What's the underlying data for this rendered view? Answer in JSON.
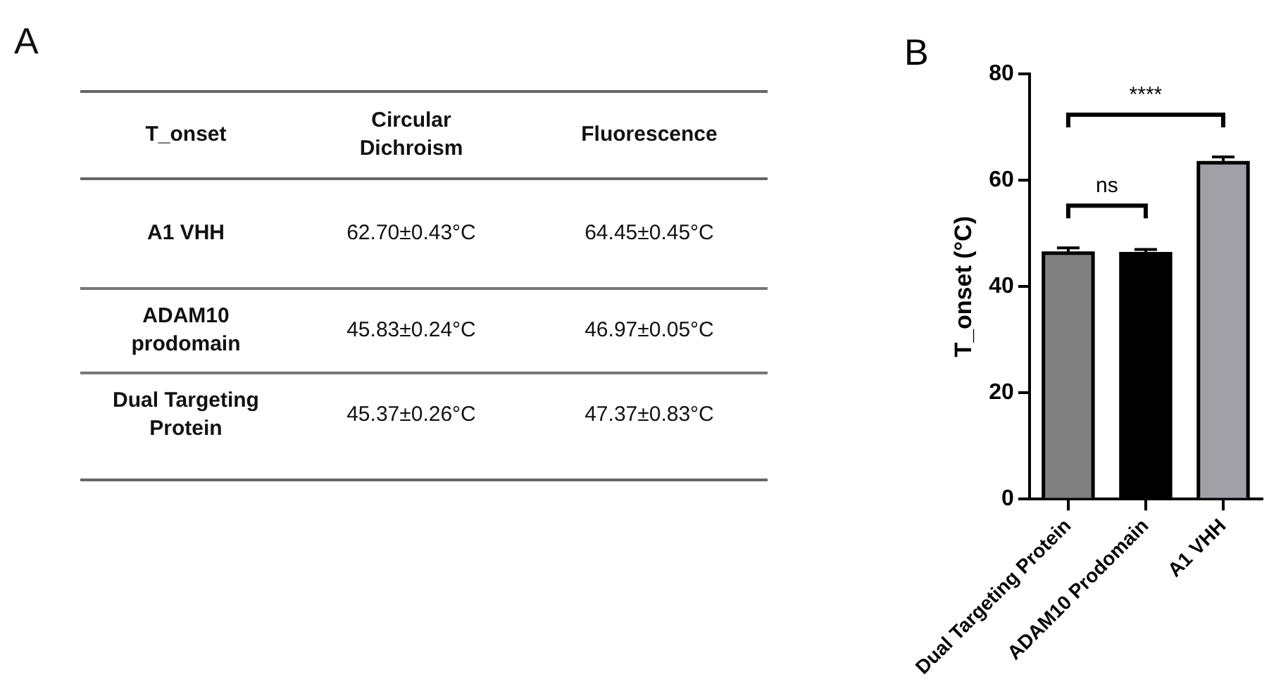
{
  "chart_data": [
    {
      "type": "other",
      "title": "A",
      "categories": [
        "T_onset",
        "Circular Dichroism",
        "Fluorescence"
      ],
      "annotations": [
        "A1 VHH",
        "62.70±0.43°C",
        "64.45±0.45°C",
        "ADAM10 prodomain",
        "45.83±0.24°C",
        "46.97±0.05°C",
        "Dual Targeting Protein",
        "45.37±0.26°C",
        "47.37±0.83°C"
      ]
    },
    {
      "type": "bar",
      "title": "B",
      "ylabel": "T_onset (°C)",
      "categories": [
        "Dual Targeting Protein",
        "ADAM10 Prodomain",
        "A1 VHH"
      ],
      "values": [
        46.3,
        46.2,
        63.3
      ],
      "errors": [
        1.0,
        0.8,
        1.1
      ],
      "colors": [
        "#808080",
        "#000000",
        "#a0a0a6"
      ],
      "ylim": [
        0,
        80
      ],
      "yticks": [
        0,
        20,
        40,
        60,
        80
      ],
      "annotations": [
        "ns",
        "****"
      ]
    }
  ]
}
